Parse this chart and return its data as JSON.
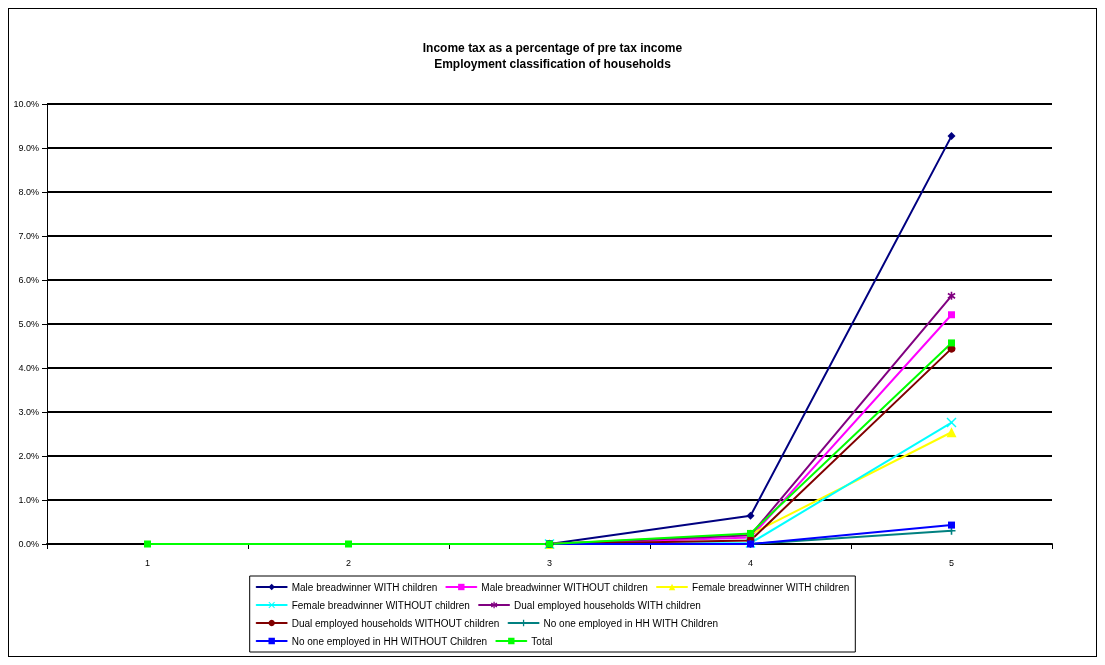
{
  "chart_data": {
    "type": "line",
    "title": "Income tax as a percentage of pre tax income\nEmployment classification of households",
    "categories": [
      "1",
      "2",
      "3",
      "4",
      "5"
    ],
    "series": [
      {
        "name": "Male breadwinner WITH children",
        "color": "#000080",
        "marker": "diamond",
        "values": [
          null,
          null,
          0,
          0.64,
          9.27
        ]
      },
      {
        "name": "Male breadwinner WITHOUT children",
        "color": "#ff00ff",
        "marker": "square",
        "values": [
          null,
          null,
          0,
          0.15,
          5.21
        ]
      },
      {
        "name": "Female breadwinner WITH children",
        "color": "#ffff00",
        "marker": "triangle",
        "values": [
          null,
          null,
          0,
          0.22,
          2.54
        ]
      },
      {
        "name": "Female breadwinner WITHOUT children",
        "color": "#00ffff",
        "marker": "cross",
        "values": [
          null,
          null,
          0,
          0.02,
          2.76
        ]
      },
      {
        "name": "Dual employed households WITH children",
        "color": "#800080",
        "marker": "star",
        "values": [
          null,
          null,
          0,
          0.2,
          5.64
        ]
      },
      {
        "name": "Dual employed households WITHOUT children",
        "color": "#800000",
        "marker": "circle",
        "values": [
          null,
          null,
          0,
          0.08,
          4.44
        ]
      },
      {
        "name": "No one employed in HH WITH Children",
        "color": "#008080",
        "marker": "plus",
        "values": [
          null,
          null,
          0,
          0,
          0.3
        ]
      },
      {
        "name": "No one employed in HH WITHOUT Children",
        "color": "#0000ff",
        "marker": "square",
        "values": [
          null,
          null,
          0,
          0,
          0.43
        ]
      },
      {
        "name": "Total",
        "color": "#00ff00",
        "marker": "square",
        "values": [
          0,
          0,
          0,
          0.24,
          4.57
        ]
      }
    ],
    "ylim": [
      0,
      10
    ],
    "yticks": [
      {
        "value": 0,
        "label": "0.0%"
      },
      {
        "value": 1,
        "label": "1.0%"
      },
      {
        "value": 2,
        "label": "2.0%"
      },
      {
        "value": 3,
        "label": "3.0%"
      },
      {
        "value": 4,
        "label": "4.0%"
      },
      {
        "value": 5,
        "label": "5.0%"
      },
      {
        "value": 6,
        "label": "6.0%"
      },
      {
        "value": 7,
        "label": "7.0%"
      },
      {
        "value": 8,
        "label": "8.0%"
      },
      {
        "value": 9,
        "label": "9.0%"
      },
      {
        "value": 10,
        "label": "10.0%"
      }
    ],
    "grid": "y",
    "legend": "bottom",
    "line_style": "solid"
  }
}
